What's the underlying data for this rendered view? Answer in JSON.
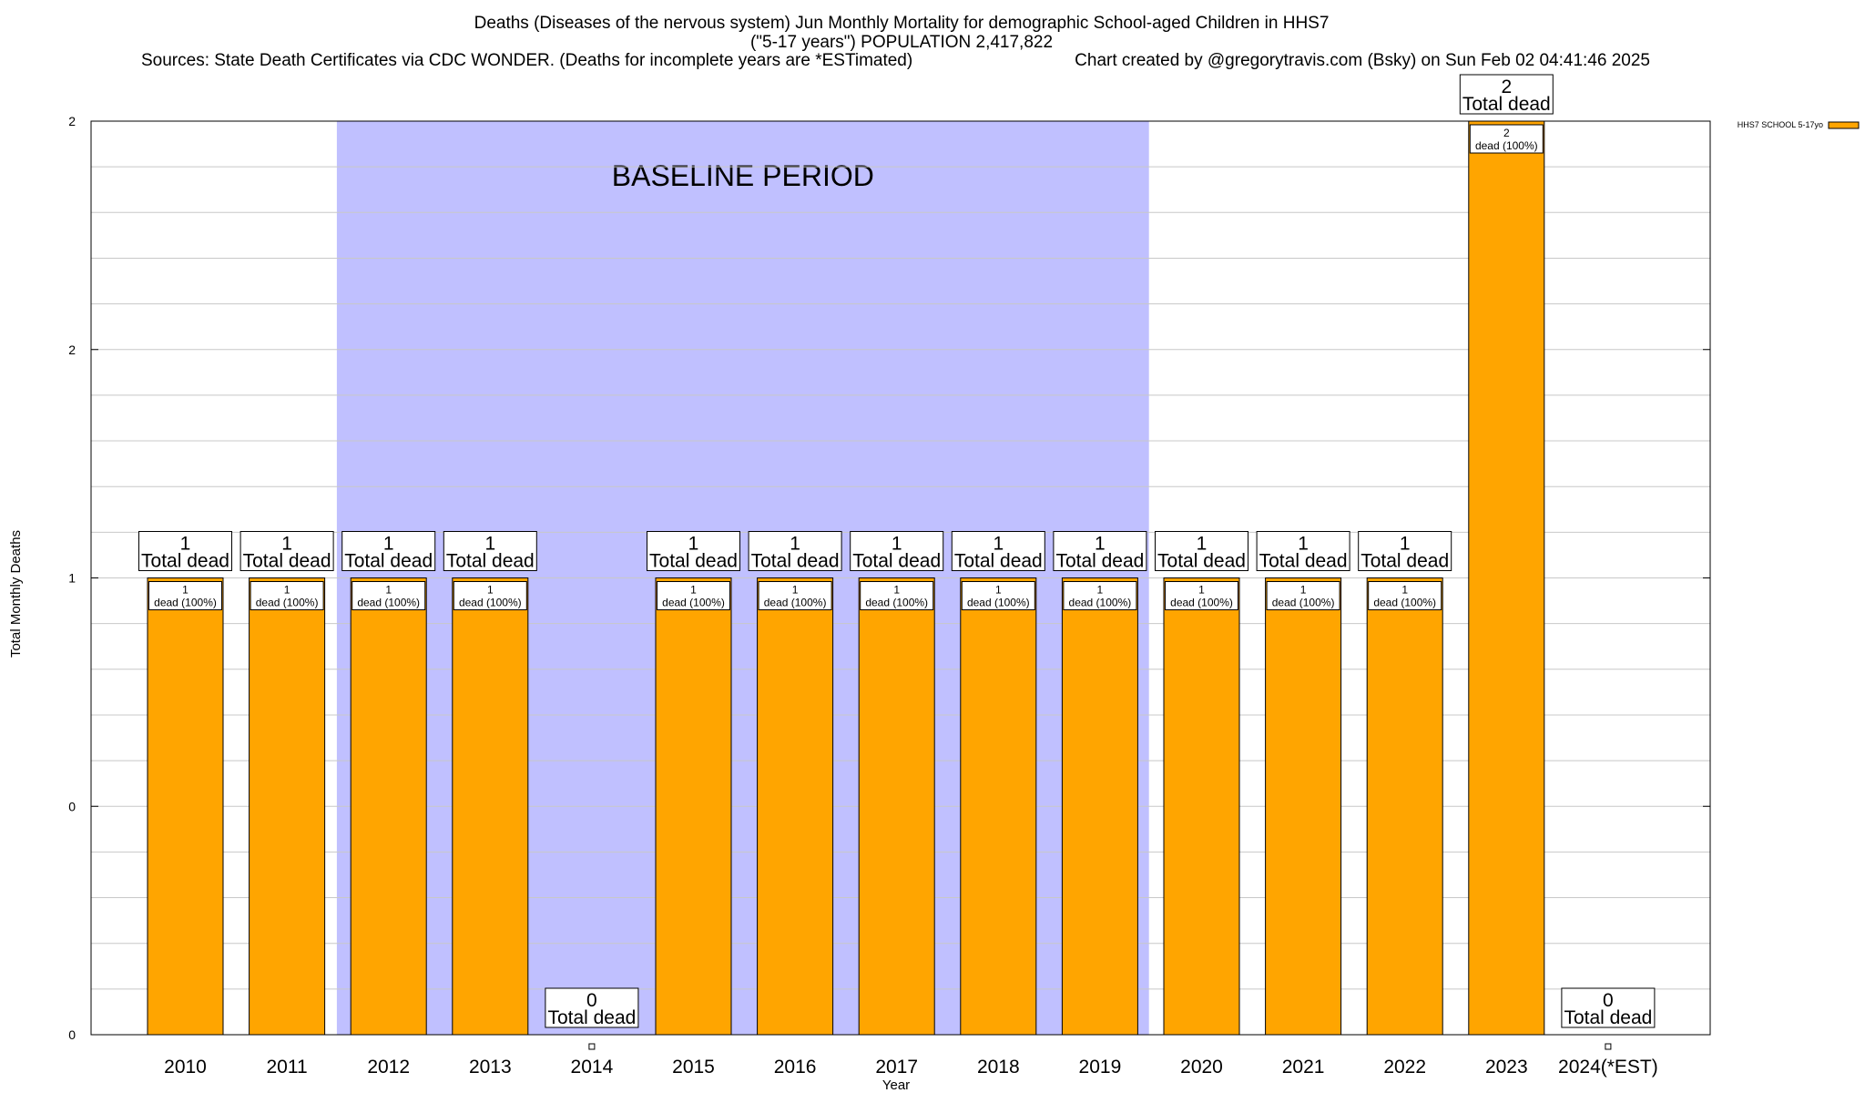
{
  "chart_data": {
    "type": "bar",
    "title_lines": [
      "Deaths (Diseases of the nervous system) Jun Monthly Mortality for demographic School-aged Children in HHS7",
      "(\"5-17 years\") POPULATION 2,417,822"
    ],
    "sources": "Sources: State Death Certificates via CDC WONDER. (Deaths for incomplete years are *ESTimated)",
    "credit": "Chart created by @gregorytravis.com (Bsky) on Sun Feb 02 04:41:46 2025",
    "xlabel": "Year",
    "ylabel": "Total Monthly Deaths",
    "ylim": [
      0,
      2
    ],
    "y_tick_labels": [
      "0",
      "0",
      "1",
      "2",
      "2"
    ],
    "categories": [
      "2010",
      "2011",
      "2012",
      "2013",
      "2014",
      "2015",
      "2016",
      "2017",
      "2018",
      "2019",
      "2020",
      "2021",
      "2022",
      "2023",
      "2024(*EST)"
    ],
    "series": [
      {
        "name": "HHS7 SCHOOL 5-17yo",
        "color": "#FFA500",
        "values": [
          1,
          1,
          1,
          1,
          0,
          1,
          1,
          1,
          1,
          1,
          1,
          1,
          1,
          2,
          0
        ]
      }
    ],
    "total_label": "Total dead",
    "inner_label": "dead (100%)",
    "baseline": {
      "label": "BASELINE PERIOD",
      "from": "2012",
      "to": "2019",
      "color": "#C0C0FF"
    },
    "legend_position": "top-right",
    "grid": true
  }
}
